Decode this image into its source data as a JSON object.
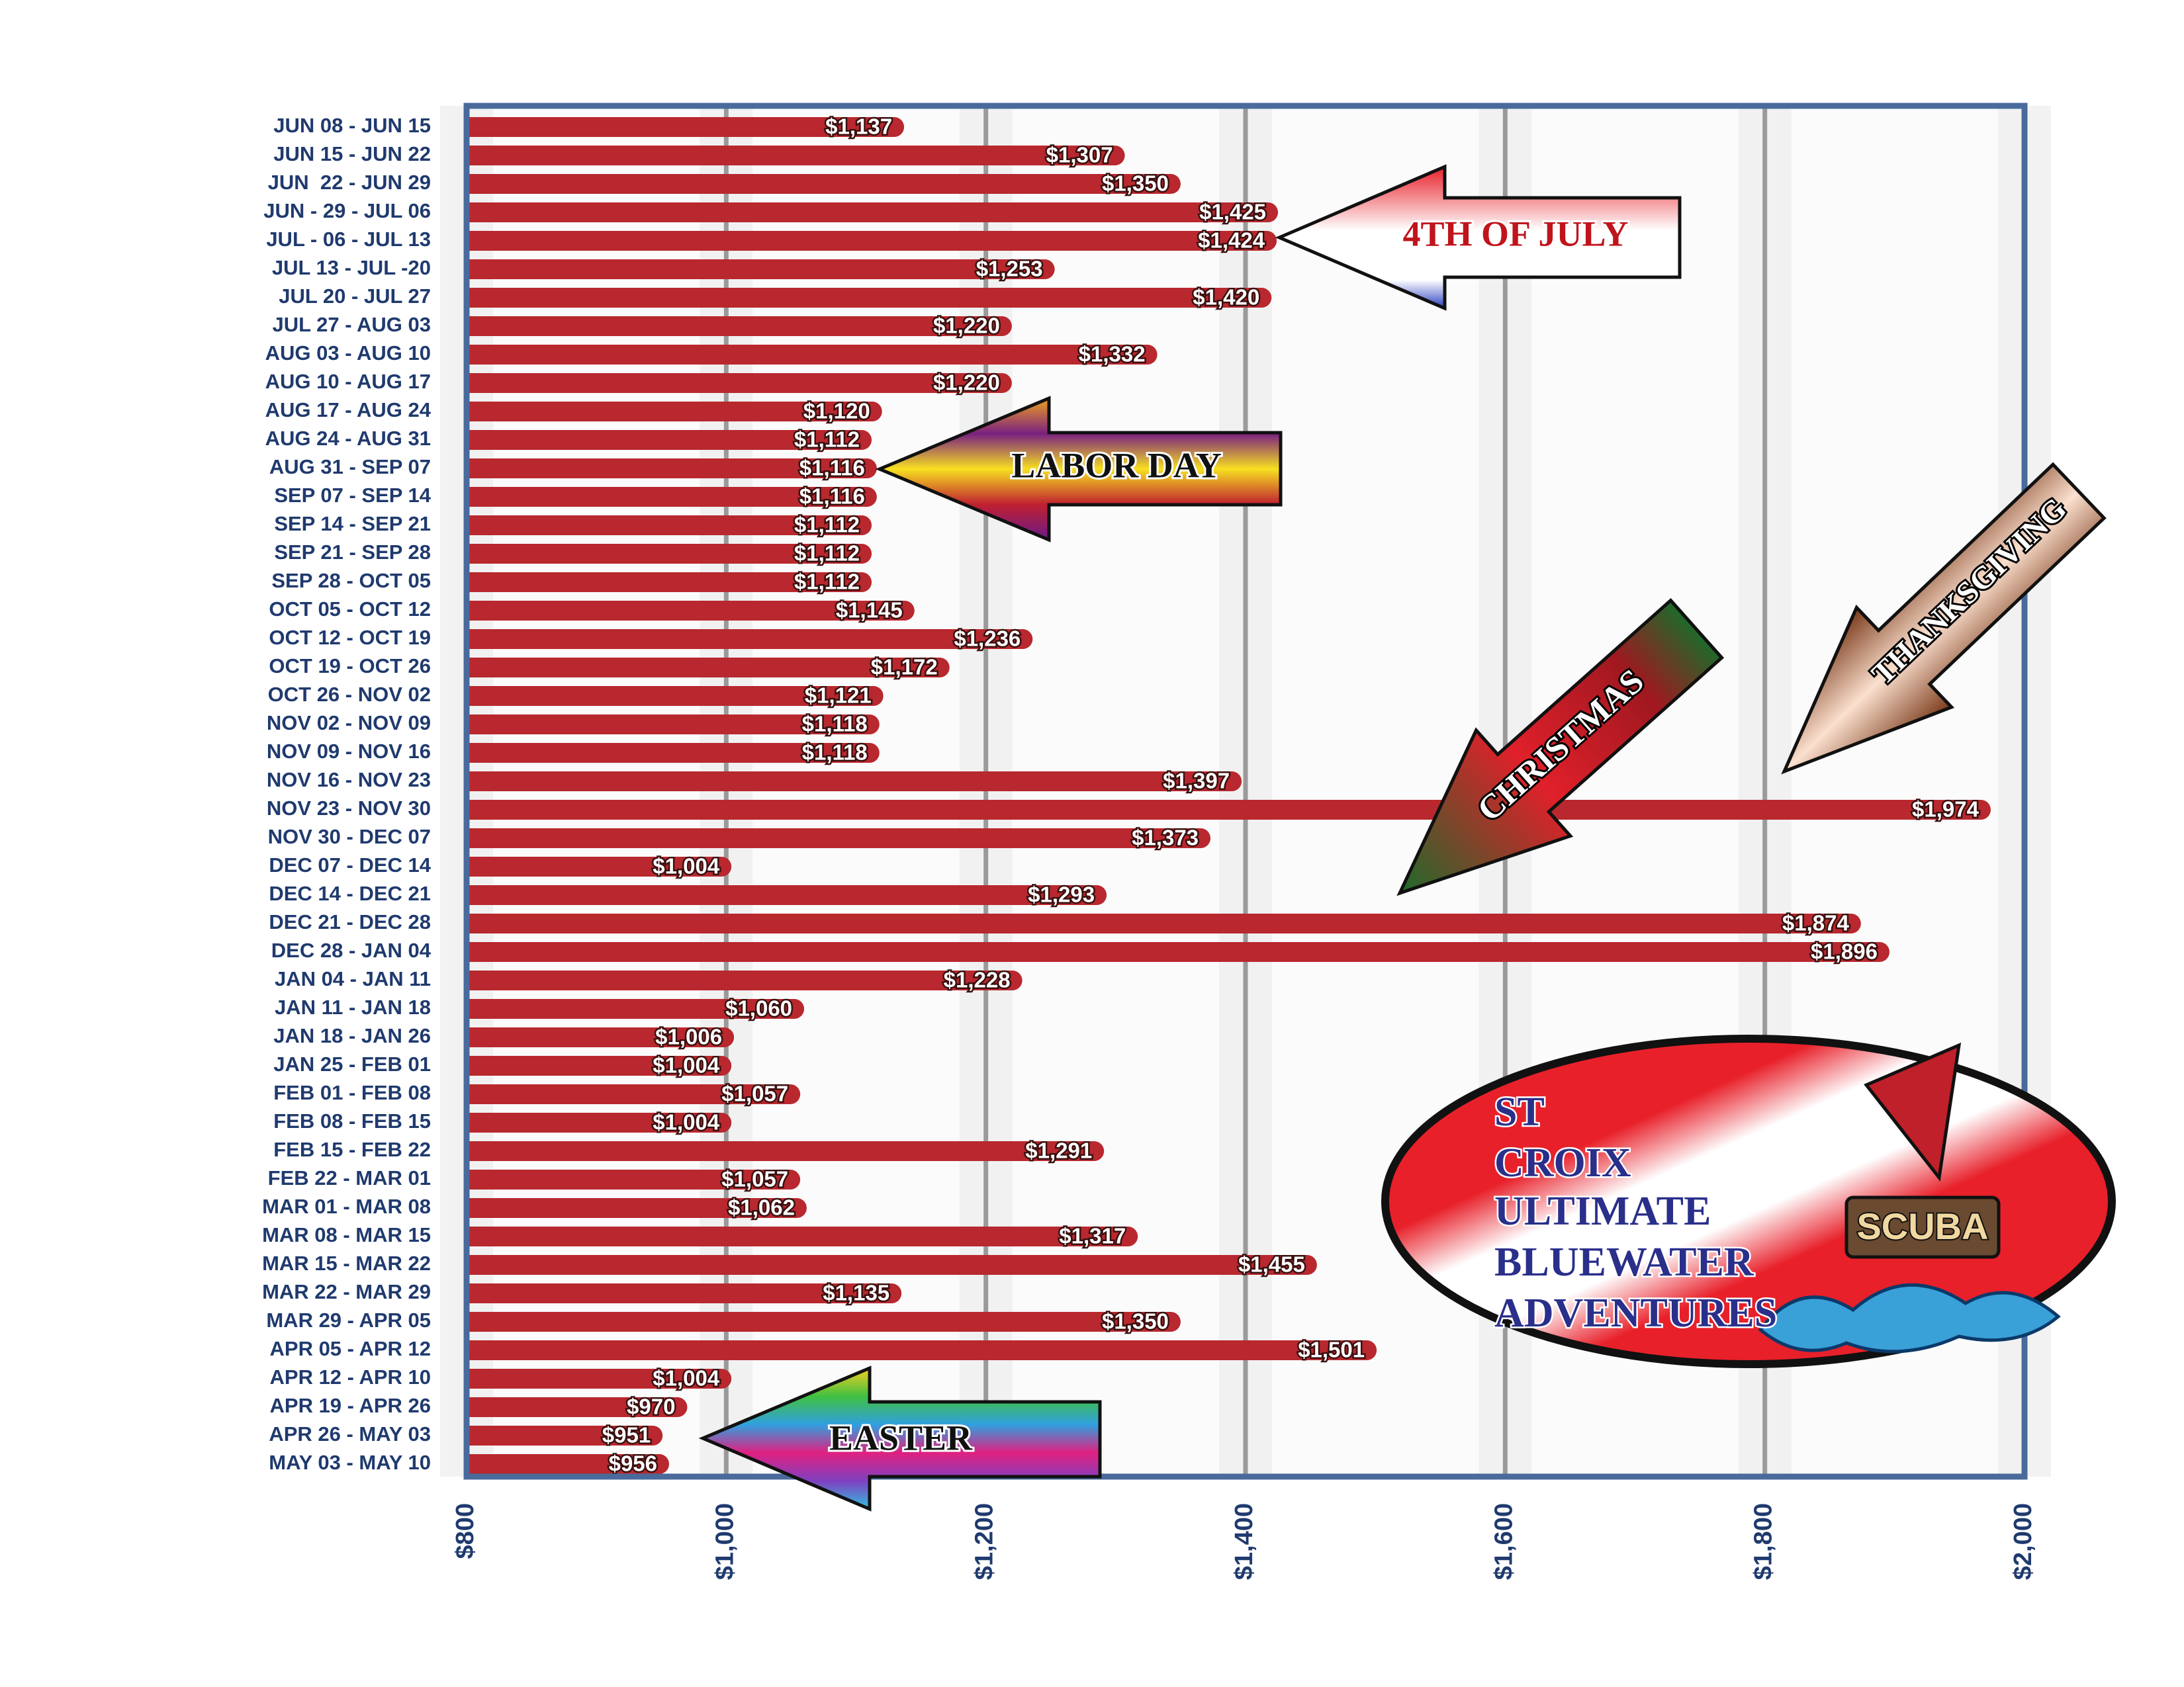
{
  "chart_data": {
    "type": "hbar",
    "categories": [
      "JUN 08 - JUN 15",
      "JUN 15 - JUN 22",
      "JUN  22 - JUN 29",
      "JUN - 29 - JUL 06",
      "JUL - 06 - JUL 13",
      "JUL 13 - JUL -20",
      "JUL 20 - JUL 27",
      "JUL 27 - AUG 03",
      "AUG 03 - AUG 10",
      "AUG 10 - AUG 17",
      "AUG 17 - AUG 24",
      "AUG 24 - AUG 31",
      "AUG 31 - SEP 07",
      "SEP 07 - SEP 14",
      "SEP 14 - SEP 21",
      "SEP 21 - SEP 28",
      "SEP 28 - OCT 05",
      "OCT 05 - OCT 12",
      "OCT 12 - OCT 19",
      "OCT 19 - OCT 26",
      "OCT 26 - NOV 02",
      "NOV 02 - NOV 09",
      "NOV 09 - NOV 16",
      "NOV 16 - NOV 23",
      "NOV 23 - NOV 30",
      "NOV 30 - DEC 07",
      "DEC 07 - DEC 14",
      "DEC 14 - DEC 21",
      "DEC 21 - DEC 28",
      "DEC 28 - JAN 04",
      "JAN 04 - JAN 11",
      "JAN 11 - JAN 18",
      "JAN 18 - JAN 26",
      "JAN 25 - FEB 01",
      "FEB 01 - FEB 08",
      "FEB 08 - FEB 15",
      "FEB 15 - FEB 22",
      "FEB 22 - MAR 01",
      "MAR 01 - MAR 08",
      "MAR 08 - MAR 15",
      "MAR 15 - MAR 22",
      "MAR 22 - MAR 29",
      "MAR 29 - APR 05",
      "APR 05 - APR 12",
      "APR 12 - APR 10",
      "APR 19 - APR 26",
      "APR 26 - MAY 03",
      "MAY 03 - MAY 10"
    ],
    "values": [
      1137,
      1307,
      1350,
      1425,
      1424,
      1253,
      1420,
      1220,
      1332,
      1220,
      1120,
      1112,
      1116,
      1116,
      1112,
      1112,
      1112,
      1145,
      1236,
      1172,
      1121,
      1118,
      1118,
      1397,
      1974,
      1373,
      1004,
      1293,
      1874,
      1896,
      1228,
      1060,
      1006,
      1004,
      1057,
      1004,
      1291,
      1057,
      1062,
      1317,
      1455,
      1135,
      1350,
      1501,
      1004,
      970,
      951,
      956
    ],
    "value_labels": [
      "$1,137",
      "$1,307",
      "$1,350",
      "$1,425",
      "$1,424",
      "$1,253",
      "$1,420",
      "$1,220",
      "$1,332",
      "$1,220",
      "$1,120",
      "$1,112",
      "$1,116",
      "$1,116",
      "$1,112",
      "$1,112",
      "$1,112",
      "$1,145",
      "$1,236",
      "$1,172",
      "$1,121",
      "$1,118",
      "$1,118",
      "$1,397",
      "$1,974",
      "$1,373",
      "$1,004",
      "$1,293",
      "$1,874",
      "$1,896",
      "$1,228",
      "$1,060",
      "$1,006",
      "$1,004",
      "$1,057",
      "$1,004",
      "$1,291",
      "$1,057",
      "$1,062",
      "$1,317",
      "$1,455",
      "$1,135",
      "$1,350",
      "$1,501",
      "$1,004",
      "$970",
      "$951",
      "$956"
    ],
    "color": "#b8282e",
    "xlim": [
      800,
      2000
    ],
    "xticks": [
      {
        "value": 800,
        "label": "$800"
      },
      {
        "value": 1000,
        "label": "$1,000"
      },
      {
        "value": 1200,
        "label": "$1,200"
      },
      {
        "value": 1400,
        "label": "$1,400"
      },
      {
        "value": 1600,
        "label": "$1,600"
      },
      {
        "value": 1800,
        "label": "$1,800"
      },
      {
        "value": 2000,
        "label": "$2,000"
      }
    ],
    "grid": true,
    "annotations": [
      "4TH OF JULY",
      "LABOR DAY",
      "CHRISTMAS",
      "THANKSGIVING",
      "EASTER"
    ],
    "logo": {
      "lines": [
        "ST",
        "CROIX",
        "ULTIMATE",
        "BLUEWATER",
        "ADVENTURES"
      ],
      "badge": "SCUBA"
    }
  }
}
